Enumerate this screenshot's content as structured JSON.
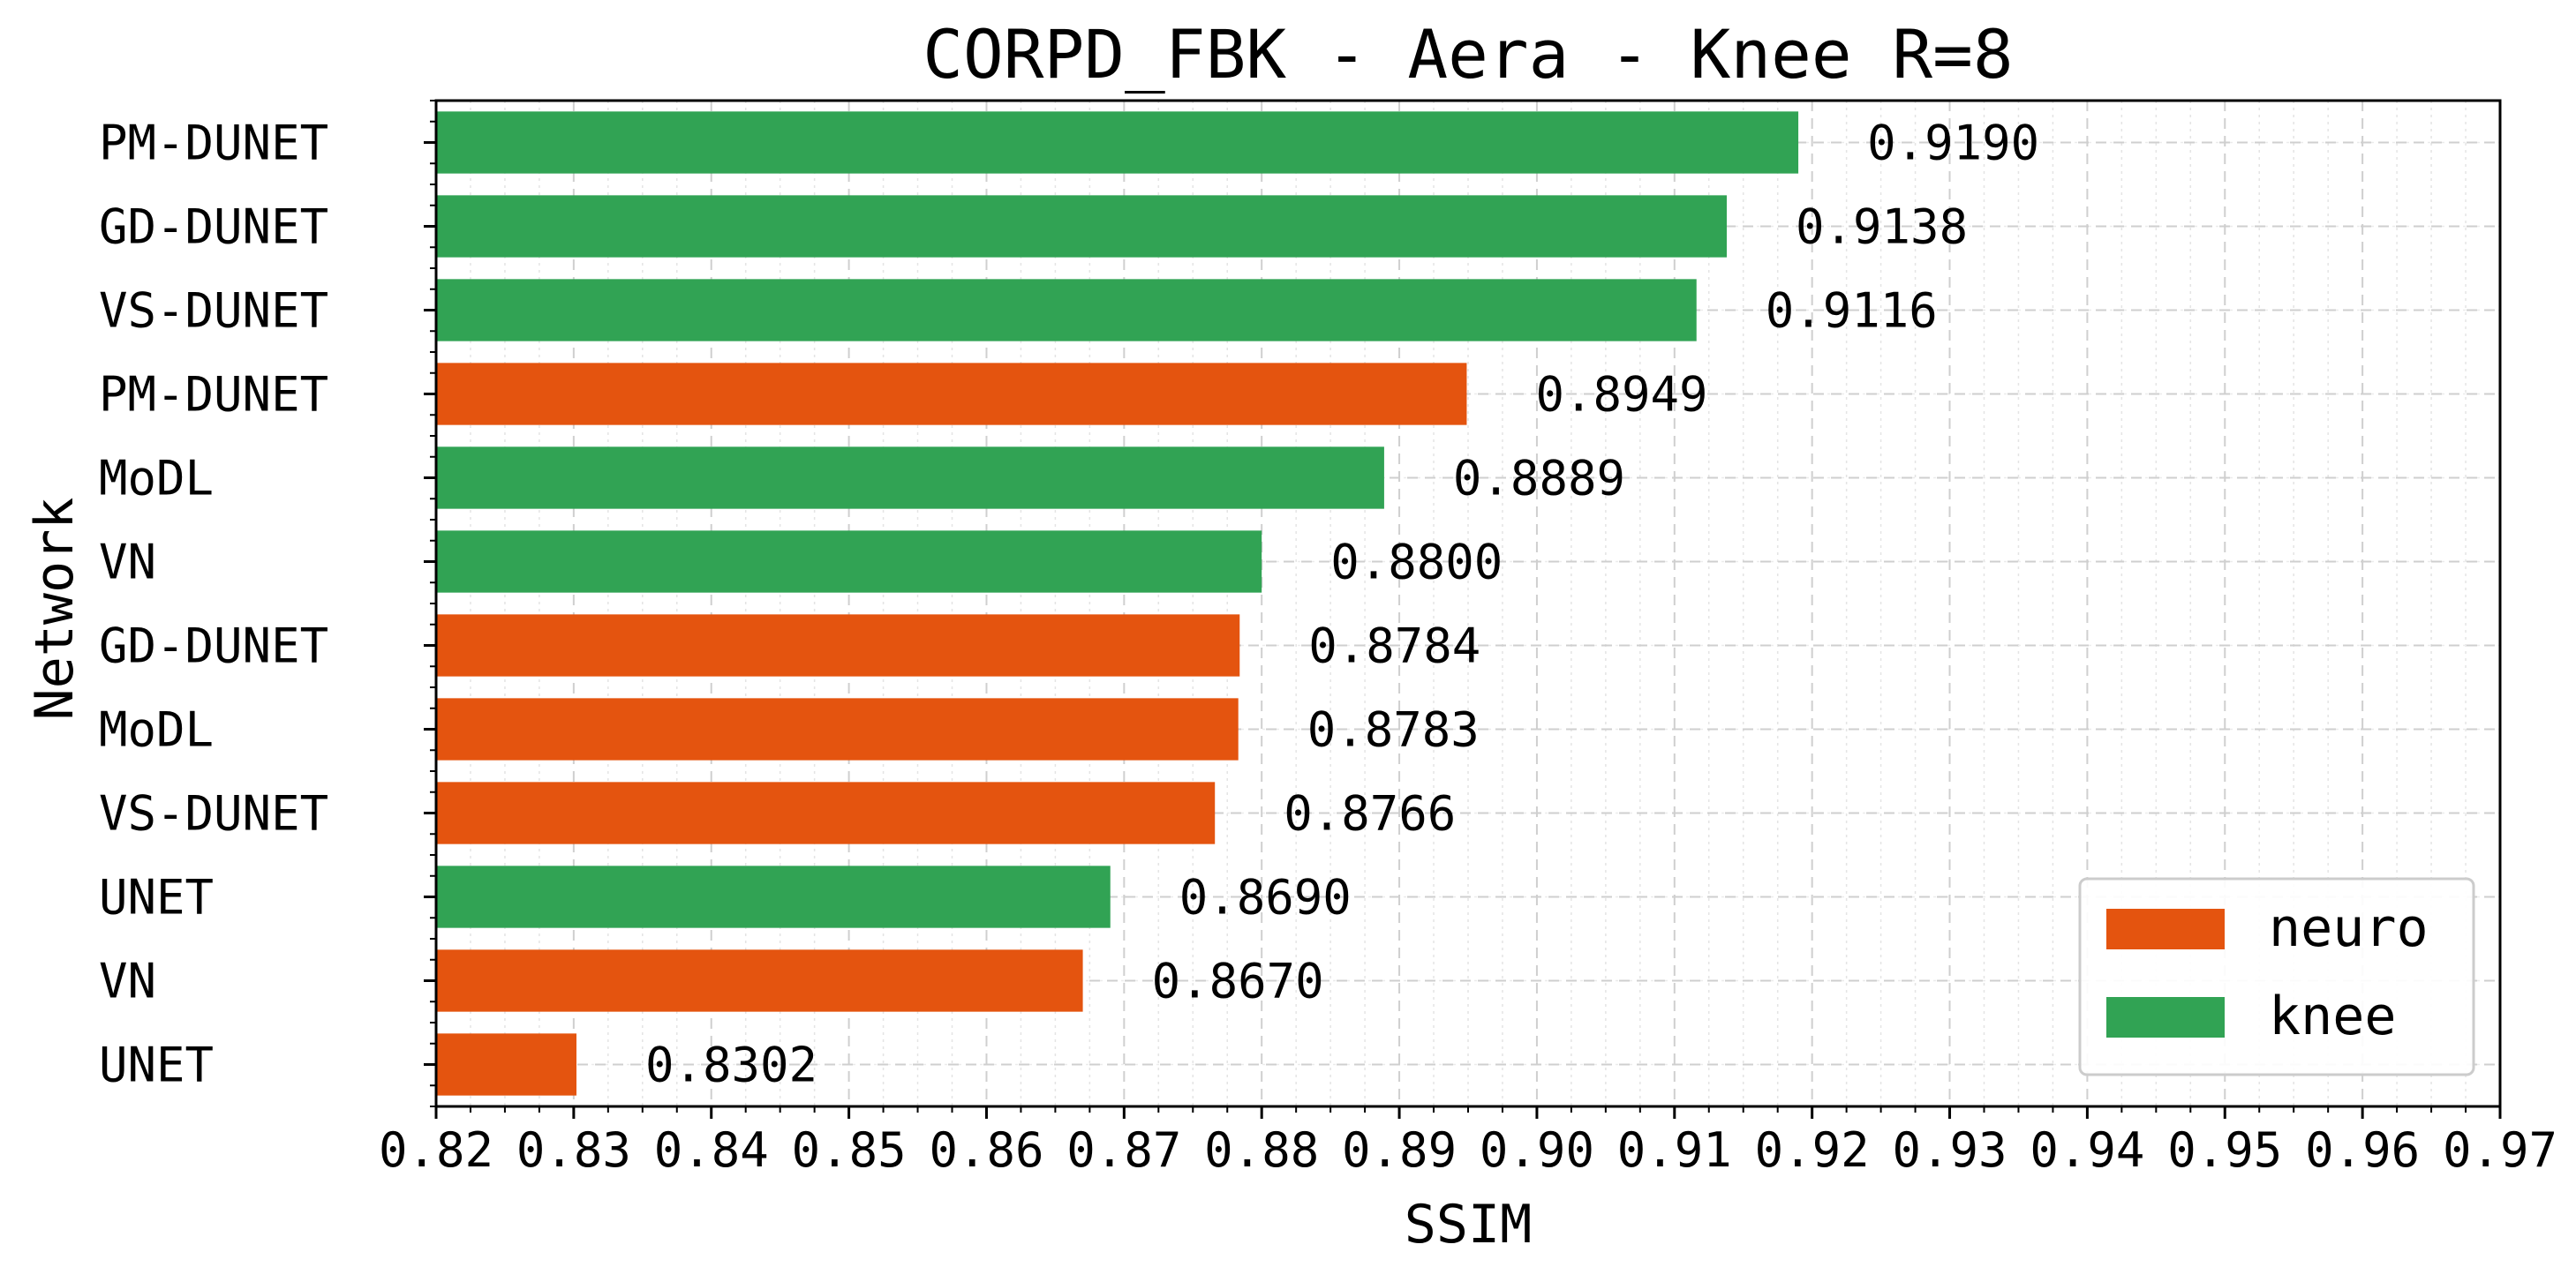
{
  "chart_data": {
    "type": "bar",
    "orientation": "horizontal",
    "title": "CORPD_FBK - Aera - Knee R=8",
    "xlabel": "SSIM",
    "ylabel": "Network",
    "xlim": [
      0.82,
      0.97
    ],
    "xticks": [
      "0.82",
      "0.83",
      "0.84",
      "0.85",
      "0.86",
      "0.87",
      "0.88",
      "0.89",
      "0.90",
      "0.91",
      "0.92",
      "0.93",
      "0.94",
      "0.95",
      "0.96",
      "0.97"
    ],
    "grid": true,
    "legend_position": "bottom-right",
    "legend": [
      {
        "name": "neuro",
        "color": "#e4540f"
      },
      {
        "name": "knee",
        "color": "#31a354"
      }
    ],
    "bars": [
      {
        "label": "PM-DUNET",
        "value": 0.919,
        "value_label": "0.9190",
        "series": "knee"
      },
      {
        "label": "GD-DUNET",
        "value": 0.9138,
        "value_label": "0.9138",
        "series": "knee"
      },
      {
        "label": "VS-DUNET",
        "value": 0.9116,
        "value_label": "0.9116",
        "series": "knee"
      },
      {
        "label": "PM-DUNET",
        "value": 0.8949,
        "value_label": "0.8949",
        "series": "neuro"
      },
      {
        "label": "MoDL",
        "value": 0.8889,
        "value_label": "0.8889",
        "series": "knee"
      },
      {
        "label": "VN",
        "value": 0.88,
        "value_label": "0.8800",
        "series": "knee"
      },
      {
        "label": "GD-DUNET",
        "value": 0.8784,
        "value_label": "0.8784",
        "series": "neuro"
      },
      {
        "label": "MoDL",
        "value": 0.8783,
        "value_label": "0.8783",
        "series": "neuro"
      },
      {
        "label": "VS-DUNET",
        "value": 0.8766,
        "value_label": "0.8766",
        "series": "neuro"
      },
      {
        "label": "UNET",
        "value": 0.869,
        "value_label": "0.8690",
        "series": "knee"
      },
      {
        "label": "VN",
        "value": 0.867,
        "value_label": "0.8670",
        "series": "neuro"
      },
      {
        "label": "UNET",
        "value": 0.8302,
        "value_label": "0.8302",
        "series": "neuro"
      }
    ]
  }
}
